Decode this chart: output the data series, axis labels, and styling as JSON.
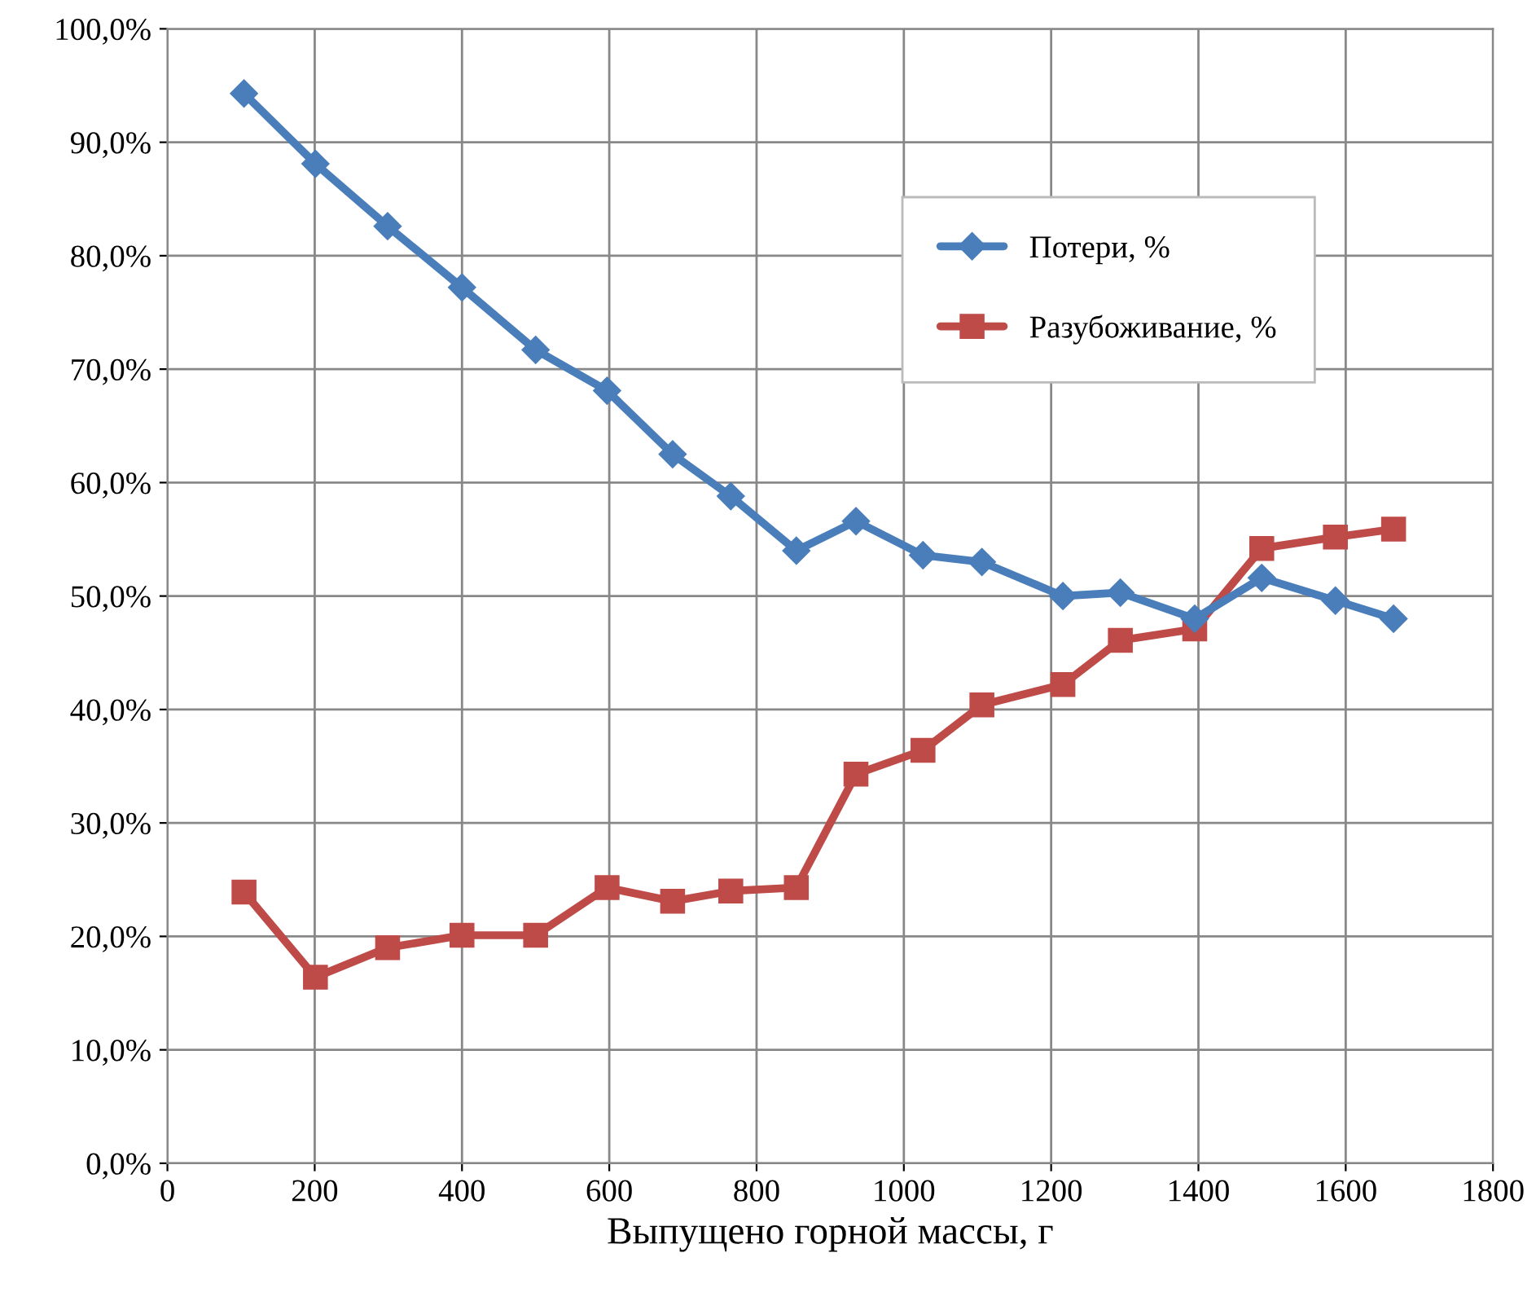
{
  "chart_data": {
    "type": "line",
    "xlabel": "Выпущено горной массы, г",
    "xlim": [
      0,
      1800
    ],
    "xticks": [
      0,
      200,
      400,
      600,
      800,
      1000,
      1200,
      1400,
      1600,
      1800
    ],
    "ylim": [
      0,
      100
    ],
    "yticks": [
      {
        "value": 0,
        "label": "0,0%"
      },
      {
        "value": 10,
        "label": "10,0%"
      },
      {
        "value": 20,
        "label": "20,0%"
      },
      {
        "value": 30,
        "label": "30,0%"
      },
      {
        "value": 40,
        "label": "40,0%"
      },
      {
        "value": 50,
        "label": "50,0%"
      },
      {
        "value": 60,
        "label": "60,0%"
      },
      {
        "value": 70,
        "label": "70,0%"
      },
      {
        "value": 80,
        "label": "80,0%"
      },
      {
        "value": 90,
        "label": "90,0%"
      },
      {
        "value": 100,
        "label": "100,0%"
      }
    ],
    "x": [
      104,
      201,
      299,
      400,
      500,
      597,
      686,
      765,
      854,
      935,
      1026,
      1106,
      1216,
      1294,
      1395,
      1486,
      1586,
      1665
    ],
    "grid": true,
    "legend": "top right",
    "line_style": "solid",
    "series": [
      {
        "name": "Потери, %",
        "color": "#4a7ebb",
        "marker": "diamond",
        "values": [
          94.3,
          88.1,
          82.6,
          77.2,
          71.7,
          68.1,
          62.5,
          58.8,
          54.0,
          56.6,
          53.6,
          53.0,
          50.0,
          50.3,
          48.0,
          51.6,
          49.6,
          48.0
        ]
      },
      {
        "name": "Разубоживание, %",
        "color": "#be4b48",
        "marker": "square",
        "values": [
          23.9,
          16.4,
          19.0,
          20.1,
          20.1,
          24.3,
          23.1,
          24.0,
          24.3,
          34.3,
          36.4,
          40.4,
          42.2,
          46.1,
          47.1,
          54.2,
          55.2,
          55.9
        ]
      }
    ]
  }
}
